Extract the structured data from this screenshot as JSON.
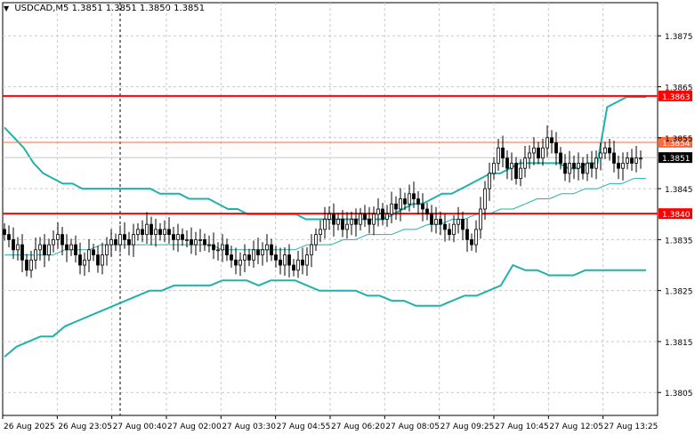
{
  "symbol_header": {
    "symbol": "USDCAD,M5",
    "ohlc": "1.3851 1.3851 1.3850 1.3851"
  },
  "colors": {
    "background": "#ffffff",
    "grid": "#c8c8c8",
    "candle": "#000000",
    "band": "#20b2aa",
    "level_line": "#ff0000",
    "level_line_secondary": "#ff6a3d",
    "price_label_bg_red": "#ff0000",
    "price_label_bg_black": "#000000"
  },
  "chart_data": {
    "type": "candlestick",
    "title": "",
    "xlabel": "",
    "ylabel": "",
    "ylim": [
      1.38005,
      1.38815
    ],
    "y_ticks": [
      "1.3875",
      "1.3865",
      "1.3855",
      "1.3845",
      "1.3835",
      "1.3825",
      "1.3815",
      "1.3805"
    ],
    "x_ticks": [
      "26 Aug 2025",
      "26 Aug 23:05",
      "27 Aug 00:40",
      "27 Aug 02:00",
      "27 Aug 03:30",
      "27 Aug 04:55",
      "27 Aug 06:20",
      "27 Aug 08:05",
      "27 Aug 09:25",
      "27 Aug 10:45",
      "27 Aug 12:05",
      "27 Aug 13:25"
    ],
    "grid": true,
    "horizontal_levels": [
      {
        "label": "1.3863",
        "value": 1.38632,
        "style": "red"
      },
      {
        "label": "1.3854",
        "value": 1.38541,
        "style": "orange"
      },
      {
        "label": "1.3840",
        "value": 1.38401,
        "style": "red"
      }
    ],
    "current_price": {
      "label": "1.3851",
      "value": 1.38511
    },
    "vertical_marker_index": 26,
    "candles_close": [
      1.3836,
      1.3835,
      1.3833,
      1.3834,
      1.3831,
      1.3829,
      1.3831,
      1.3833,
      1.3834,
      1.3832,
      1.3834,
      1.3835,
      1.3836,
      1.3834,
      1.3833,
      1.3834,
      1.3832,
      1.383,
      1.3831,
      1.3833,
      1.3832,
      1.383,
      1.3832,
      1.3834,
      1.3835,
      1.3834,
      1.3836,
      1.3835,
      1.3834,
      1.3836,
      1.3837,
      1.3836,
      1.3838,
      1.3836,
      1.3837,
      1.3836,
      1.3837,
      1.3836,
      1.3835,
      1.3836,
      1.3835,
      1.3835,
      1.3834,
      1.3835,
      1.3835,
      1.3834,
      1.3834,
      1.3833,
      1.3833,
      1.3834,
      1.3832,
      1.3831,
      1.383,
      1.3831,
      1.3832,
      1.3831,
      1.3833,
      1.3832,
      1.3833,
      1.3834,
      1.3832,
      1.3831,
      1.383,
      1.3832,
      1.383,
      1.3829,
      1.3831,
      1.383,
      1.3832,
      1.3834,
      1.3836,
      1.3837,
      1.3839,
      1.384,
      1.3838,
      1.3839,
      1.3837,
      1.3838,
      1.3839,
      1.3838,
      1.384,
      1.3839,
      1.3838,
      1.384,
      1.3841,
      1.3839,
      1.384,
      1.3842,
      1.3841,
      1.3843,
      1.3842,
      1.3844,
      1.3843,
      1.3842,
      1.3841,
      1.384,
      1.3838,
      1.3839,
      1.3838,
      1.3837,
      1.3836,
      1.3838,
      1.3839,
      1.3837,
      1.3835,
      1.3834,
      1.3837,
      1.3841,
      1.3845,
      1.3848,
      1.385,
      1.3853,
      1.3851,
      1.3849,
      1.385,
      1.3847,
      1.3849,
      1.3851,
      1.3852,
      1.3853,
      1.3851,
      1.3853,
      1.3855,
      1.3854,
      1.3852,
      1.385,
      1.3848,
      1.385,
      1.3849,
      1.385,
      1.3848,
      1.385,
      1.3849,
      1.3851,
      1.3852,
      1.3853,
      1.3852,
      1.385,
      1.3849,
      1.385,
      1.3851,
      1.385,
      1.3851,
      1.3851
    ],
    "upper_band": [
      1.3857,
      1.3855,
      1.3853,
      1.385,
      1.3848,
      1.3847,
      1.3846,
      1.3846,
      1.3845,
      1.3845,
      1.3845,
      1.3845,
      1.3845,
      1.3845,
      1.3845,
      1.3845,
      1.3844,
      1.3844,
      1.3844,
      1.3843,
      1.3843,
      1.3843,
      1.3842,
      1.3841,
      1.3841,
      1.384,
      1.384,
      1.384,
      1.384,
      1.384,
      1.384,
      1.3839,
      1.3839,
      1.3839,
      1.3839,
      1.3839,
      1.3839,
      1.3839,
      1.3839,
      1.3839,
      1.384,
      1.3841,
      1.3842,
      1.3842,
      1.3843,
      1.3844,
      1.3844,
      1.3845,
      1.3846,
      1.3847,
      1.3848,
      1.3848,
      1.3849,
      1.385,
      1.385,
      1.385,
      1.385,
      1.385,
      1.3849,
      1.3849,
      1.385,
      1.385,
      1.3861,
      1.3862,
      1.3863,
      1.3863,
      1.3863
    ],
    "middle_band": [
      1.3832,
      1.3832,
      1.3832,
      1.3832,
      1.3832,
      1.3833,
      1.3833,
      1.3833,
      1.3834,
      1.3834,
      1.3834,
      1.3834,
      1.3834,
      1.3834,
      1.3834,
      1.3834,
      1.3834,
      1.3834,
      1.3833,
      1.3833,
      1.3833,
      1.3833,
      1.3833,
      1.3833,
      1.3833,
      1.3834,
      1.3834,
      1.3834,
      1.3835,
      1.3835,
      1.3836,
      1.3836,
      1.3836,
      1.3837,
      1.3837,
      1.3838,
      1.3838,
      1.3839,
      1.3839,
      1.384,
      1.384,
      1.3841,
      1.3841,
      1.3842,
      1.3843,
      1.3843,
      1.3844,
      1.3844,
      1.3845,
      1.3845,
      1.3846,
      1.3846,
      1.3847,
      1.3847
    ],
    "lower_band": [
      1.3812,
      1.3814,
      1.3815,
      1.3816,
      1.3816,
      1.3818,
      1.3819,
      1.382,
      1.3821,
      1.3822,
      1.3823,
      1.3824,
      1.3825,
      1.3825,
      1.3826,
      1.3826,
      1.3826,
      1.3826,
      1.3827,
      1.3827,
      1.3827,
      1.3826,
      1.3827,
      1.3827,
      1.3827,
      1.3826,
      1.3825,
      1.3825,
      1.3825,
      1.3825,
      1.3824,
      1.3824,
      1.3823,
      1.3823,
      1.3822,
      1.3822,
      1.3822,
      1.3823,
      1.3824,
      1.3824,
      1.3825,
      1.3826,
      1.383,
      1.3829,
      1.3829,
      1.3828,
      1.3828,
      1.3828,
      1.3829,
      1.3829,
      1.3829,
      1.3829,
      1.3829,
      1.3829
    ]
  }
}
